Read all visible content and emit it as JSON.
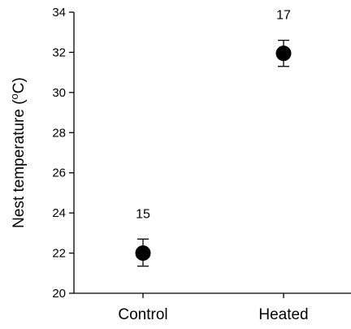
{
  "chart_data": {
    "type": "scatter",
    "title": "",
    "xlabel": "",
    "ylabel": {
      "prefix": "Nest temperature (",
      "superscript": "o",
      "suffix": "C)"
    },
    "ylim": [
      20,
      34
    ],
    "yticks": [
      20,
      22,
      24,
      26,
      28,
      30,
      32,
      34
    ],
    "categories": [
      "Control",
      "Heated"
    ],
    "points": [
      {
        "category": "Control",
        "mean": 22.0,
        "error_low": 21.35,
        "error_high": 22.7,
        "n_label": "15"
      },
      {
        "category": "Heated",
        "mean": 31.95,
        "error_low": 31.3,
        "error_high": 32.6,
        "n_label": "17"
      }
    ],
    "grid": false,
    "legend": "none"
  }
}
